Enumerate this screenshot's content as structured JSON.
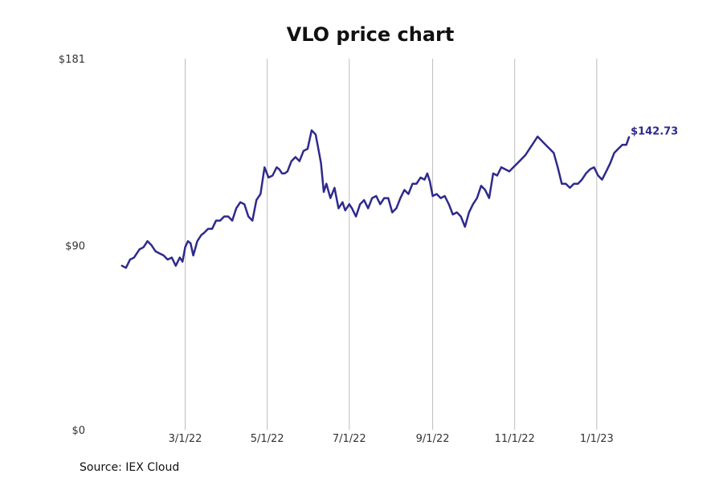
{
  "chart_data": {
    "type": "line",
    "title": "VLO price chart",
    "xlabel": "",
    "ylabel": "",
    "y_ticks": [
      {
        "value": 0,
        "label": "$0"
      },
      {
        "value": 90,
        "label": "$90"
      },
      {
        "value": 181,
        "label": "$181"
      }
    ],
    "ylim": [
      0,
      181
    ],
    "xlim": [
      "2021-12-25",
      "2023-03-06"
    ],
    "x_ticks": [
      {
        "date": "2022-03-01",
        "label": "3/1/22"
      },
      {
        "date": "2022-05-01",
        "label": "5/1/22"
      },
      {
        "date": "2022-07-01",
        "label": "7/1/22"
      },
      {
        "date": "2022-09-01",
        "label": "9/1/22"
      },
      {
        "date": "2022-11-01",
        "label": "11/1/22"
      },
      {
        "date": "2023-01-01",
        "label": "1/1/23"
      }
    ],
    "grid": "vertical",
    "line_color": "#2e2a8c",
    "last_value_label": "$142.73",
    "series": [
      {
        "x": [
          "2022-01-13",
          "2022-01-16",
          "2022-01-19",
          "2022-01-22",
          "2022-01-26",
          "2022-01-29",
          "2022-02-01",
          "2022-02-04",
          "2022-02-07",
          "2022-02-10",
          "2022-02-13",
          "2022-02-16",
          "2022-02-19",
          "2022-02-22",
          "2022-02-25",
          "2022-02-27",
          "2022-03-01",
          "2022-03-03",
          "2022-03-05",
          "2022-03-07",
          "2022-03-10",
          "2022-03-13",
          "2022-03-15",
          "2022-03-18",
          "2022-03-21",
          "2022-03-24",
          "2022-03-27",
          "2022-03-30",
          "2022-04-02",
          "2022-04-05",
          "2022-04-08",
          "2022-04-11",
          "2022-04-14",
          "2022-04-17",
          "2022-04-20",
          "2022-04-23",
          "2022-04-26",
          "2022-04-29",
          "2022-05-02",
          "2022-05-05",
          "2022-05-08",
          "2022-05-10",
          "2022-05-12",
          "2022-05-14",
          "2022-05-16",
          "2022-05-19",
          "2022-05-22",
          "2022-05-25",
          "2022-05-28",
          "2022-05-31",
          "2022-06-03",
          "2022-06-06",
          "2022-06-08",
          "2022-06-10",
          "2022-06-12",
          "2022-06-14",
          "2022-06-17",
          "2022-06-20",
          "2022-06-23",
          "2022-06-26",
          "2022-06-28",
          "2022-07-01",
          "2022-07-03",
          "2022-07-06",
          "2022-07-09",
          "2022-07-12",
          "2022-07-15",
          "2022-07-18",
          "2022-07-21",
          "2022-07-24",
          "2022-07-27",
          "2022-07-30",
          "2022-08-02",
          "2022-08-05",
          "2022-08-08",
          "2022-08-11",
          "2022-08-14",
          "2022-08-17",
          "2022-08-20",
          "2022-08-23",
          "2022-08-26",
          "2022-08-28",
          "2022-08-30",
          "2022-09-01",
          "2022-09-04",
          "2022-09-07",
          "2022-09-10",
          "2022-09-13",
          "2022-09-16",
          "2022-09-19",
          "2022-09-22",
          "2022-09-25",
          "2022-09-28",
          "2022-10-01",
          "2022-10-04",
          "2022-10-07",
          "2022-10-10",
          "2022-10-13",
          "2022-10-16",
          "2022-10-19",
          "2022-10-22",
          "2022-10-25",
          "2022-10-28",
          "2022-10-31",
          "2022-11-03",
          "2022-11-06",
          "2022-11-09",
          "2022-11-12",
          "2022-11-15",
          "2022-11-18",
          "2022-11-21",
          "2022-11-24",
          "2022-11-27",
          "2022-11-30",
          "2022-12-03",
          "2022-12-06",
          "2022-12-09",
          "2022-12-12",
          "2022-12-15",
          "2022-12-18",
          "2022-12-21",
          "2022-12-24",
          "2022-12-27",
          "2022-12-30",
          "2023-01-02",
          "2023-01-05",
          "2023-01-08",
          "2023-01-11",
          "2023-01-14",
          "2023-01-17",
          "2023-01-20",
          "2023-01-23",
          "2023-01-25"
        ],
        "values": [
          80,
          79,
          83,
          84,
          88,
          89,
          92,
          90,
          87,
          86,
          85,
          83,
          84,
          80,
          84,
          82,
          89,
          92,
          91,
          85,
          92,
          95,
          96,
          98,
          98,
          102,
          102,
          104,
          104,
          102,
          108,
          111,
          110,
          104,
          102,
          112,
          115,
          128,
          123,
          124,
          128,
          127,
          125,
          125,
          126,
          131,
          133,
          131,
          136,
          137,
          146,
          144,
          137,
          130,
          116,
          120,
          113,
          118,
          108,
          111,
          107,
          110,
          108,
          104,
          110,
          112,
          108,
          113,
          114,
          110,
          113,
          113,
          106,
          108,
          113,
          117,
          115,
          120,
          120,
          123,
          122,
          125,
          121,
          114,
          115,
          113,
          114,
          110,
          105,
          106,
          104,
          99,
          106,
          110,
          113,
          119,
          117,
          113,
          125,
          124,
          128,
          127,
          126,
          128,
          130,
          132,
          134,
          137,
          140,
          143,
          141,
          139,
          137,
          135,
          128,
          120,
          120,
          118,
          120,
          120,
          122,
          125,
          127,
          128,
          124,
          122,
          126,
          130,
          135,
          137,
          139,
          139,
          142.73
        ]
      }
    ]
  },
  "source": "Source: IEX Cloud"
}
